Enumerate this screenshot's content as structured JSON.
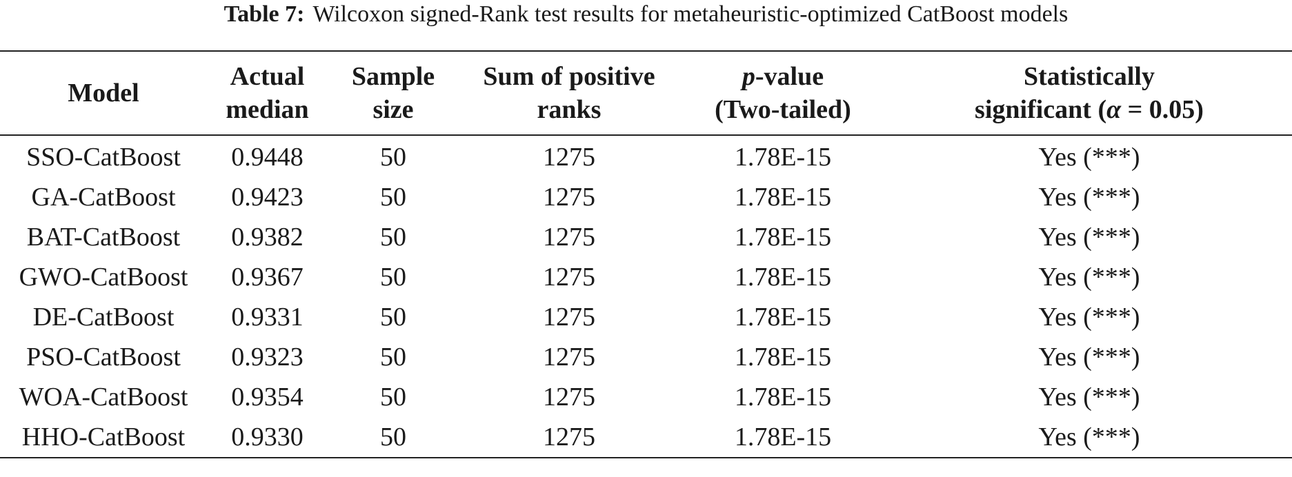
{
  "caption": {
    "label": "Table 7:",
    "text": "Wilcoxon signed-Rank test results for metaheuristic-optimized CatBoost models"
  },
  "headers": {
    "model": "Model",
    "actual_median": [
      "Actual",
      "median"
    ],
    "sample_size": [
      "Sample",
      "size"
    ],
    "sum_positive_ranks": [
      "Sum of positive",
      "ranks"
    ],
    "p_value": {
      "italic": "p",
      "rest": "-value",
      "line2": "(Two-tailed)"
    },
    "significance": {
      "line1": "Statistically",
      "line2_pre": "significant (",
      "alpha": "α",
      "line2_post": " = 0.05)"
    }
  },
  "rows": [
    {
      "model": "SSO-CatBoost",
      "median": "0.9448",
      "n": "50",
      "sum": "1275",
      "p": "1.78E-15",
      "sig": "Yes (***)"
    },
    {
      "model": "GA-CatBoost",
      "median": "0.9423",
      "n": "50",
      "sum": "1275",
      "p": "1.78E-15",
      "sig": "Yes (***)"
    },
    {
      "model": "BAT-CatBoost",
      "median": "0.9382",
      "n": "50",
      "sum": "1275",
      "p": "1.78E-15",
      "sig": "Yes (***)"
    },
    {
      "model": "GWO-CatBoost",
      "median": "0.9367",
      "n": "50",
      "sum": "1275",
      "p": "1.78E-15",
      "sig": "Yes (***)"
    },
    {
      "model": "DE-CatBoost",
      "median": "0.9331",
      "n": "50",
      "sum": "1275",
      "p": "1.78E-15",
      "sig": "Yes (***)"
    },
    {
      "model": "PSO-CatBoost",
      "median": "0.9323",
      "n": "50",
      "sum": "1275",
      "p": "1.78E-15",
      "sig": "Yes (***)"
    },
    {
      "model": "WOA-CatBoost",
      "median": "0.9354",
      "n": "50",
      "sum": "1275",
      "p": "1.78E-15",
      "sig": "Yes (***)"
    },
    {
      "model": "HHO-CatBoost",
      "median": "0.9330",
      "n": "50",
      "sum": "1275",
      "p": "1.78E-15",
      "sig": "Yes (***)"
    }
  ]
}
